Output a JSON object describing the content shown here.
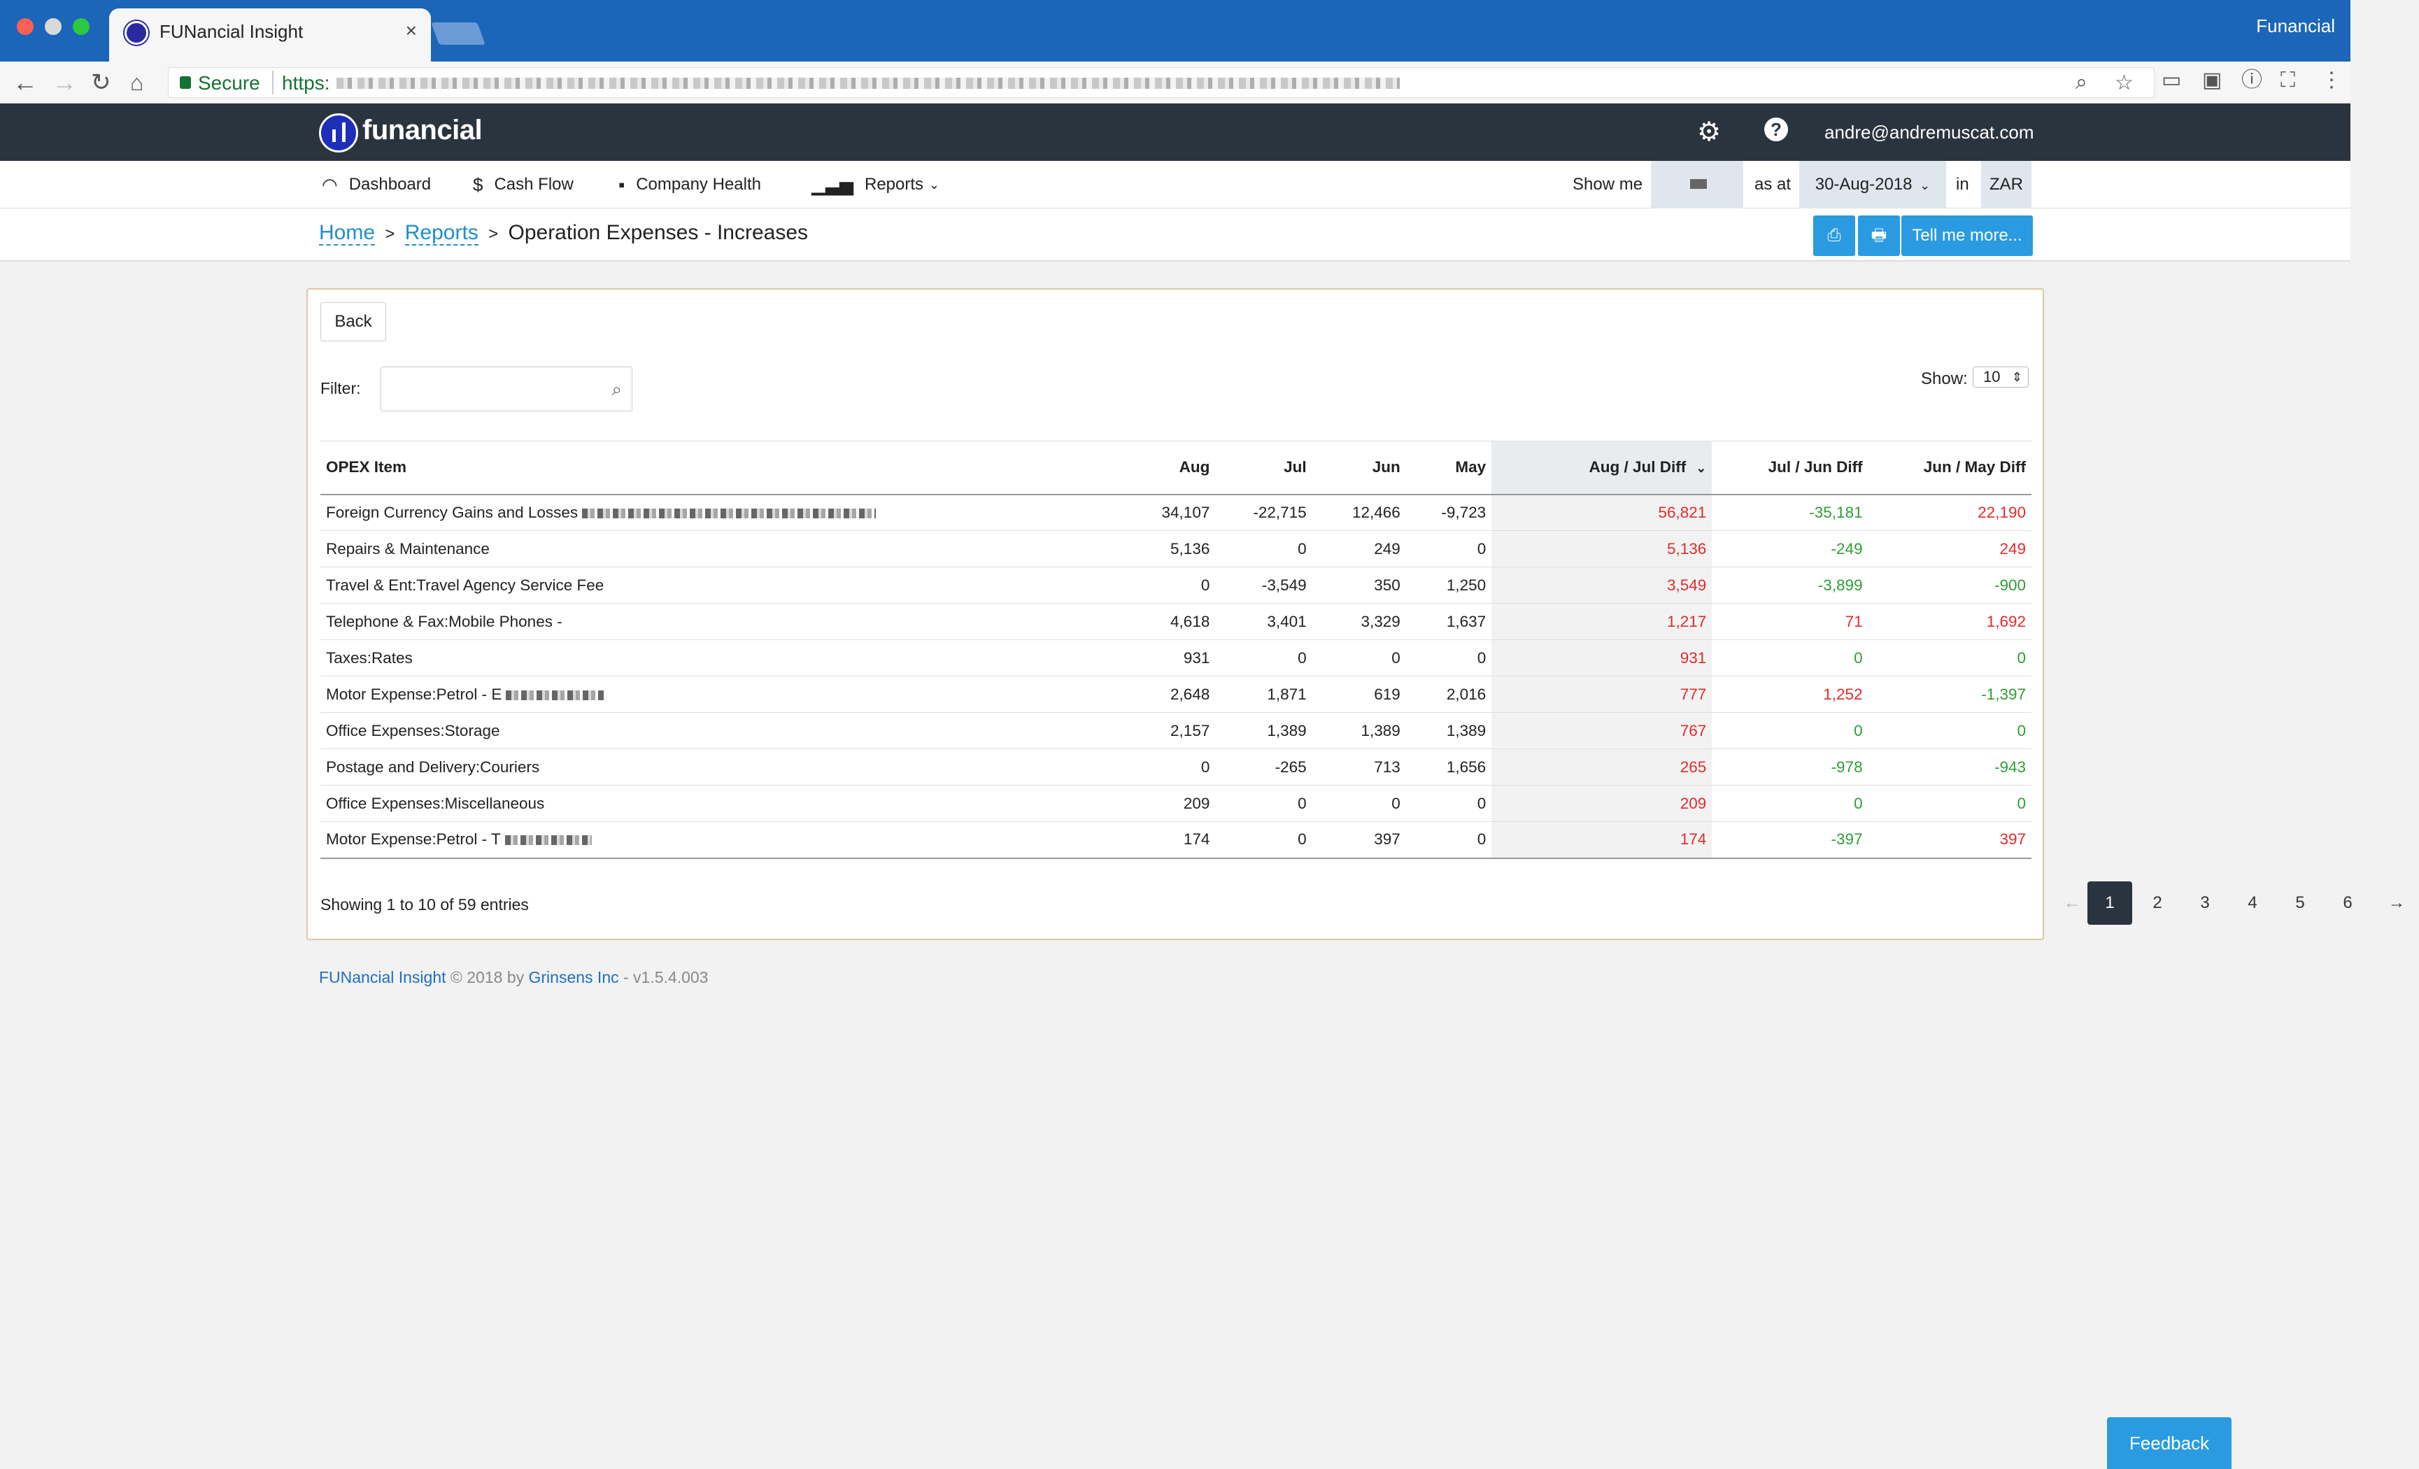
{
  "browser": {
    "tab_title": "FUNancial Insight",
    "tab_close": "×",
    "profile_name": "Funancial",
    "secure_label": "Secure",
    "url_prefix": "https:"
  },
  "header": {
    "logo_text": "funancial",
    "user_email": "andre@andremuscat.com"
  },
  "nav": {
    "items": [
      {
        "label": "Dashboard",
        "icon": "speedometer-icon"
      },
      {
        "label": "Cash Flow",
        "icon": "dollar-icon"
      },
      {
        "label": "Company Health",
        "icon": "medkit-icon"
      },
      {
        "label": "Reports",
        "icon": "bar-chart-icon"
      }
    ],
    "show_me_label": "Show me",
    "as_at_label": "as at",
    "date_value": "30-Aug-2018",
    "in_label": "in",
    "currency": "ZAR"
  },
  "breadcrumb": {
    "home": "Home",
    "reports": "Reports",
    "separator": ">",
    "current": "Operation Expenses - Increases"
  },
  "actions": {
    "tell_me_more": "Tell me more..."
  },
  "panel": {
    "back_label": "Back",
    "filter_label": "Filter:",
    "filter_value": "",
    "show_label": "Show:",
    "show_value": "10"
  },
  "table": {
    "columns": [
      "OPEX Item",
      "Aug",
      "Jul",
      "Jun",
      "May",
      "Aug / Jul Diff",
      "Jul / Jun Diff",
      "Jun / May Diff"
    ],
    "rows": [
      {
        "item": "Foreign Currency Gains and Losses",
        "aug": "34,107",
        "jul": "-22,715",
        "jun": "12,466",
        "may": "-9,723",
        "d1": "56,821",
        "d1c": "red",
        "d2": "-35,181",
        "d2c": "green",
        "d3": "22,190",
        "d3c": "red"
      },
      {
        "item": "Repairs & Maintenance",
        "aug": "5,136",
        "jul": "0",
        "jun": "249",
        "may": "0",
        "d1": "5,136",
        "d1c": "red",
        "d2": "-249",
        "d2c": "green",
        "d3": "249",
        "d3c": "red"
      },
      {
        "item": "Travel & Ent:Travel Agency Service Fee",
        "aug": "0",
        "jul": "-3,549",
        "jun": "350",
        "may": "1,250",
        "d1": "3,549",
        "d1c": "red",
        "d2": "-3,899",
        "d2c": "green",
        "d3": "-900",
        "d3c": "green"
      },
      {
        "item": "Telephone & Fax:Mobile Phones -",
        "aug": "4,618",
        "jul": "3,401",
        "jun": "3,329",
        "may": "1,637",
        "d1": "1,217",
        "d1c": "red",
        "d2": "71",
        "d2c": "red",
        "d3": "1,692",
        "d3c": "red"
      },
      {
        "item": "Taxes:Rates",
        "aug": "931",
        "jul": "0",
        "jun": "0",
        "may": "0",
        "d1": "931",
        "d1c": "red",
        "d2": "0",
        "d2c": "green",
        "d3": "0",
        "d3c": "green"
      },
      {
        "item": "Motor Expense:Petrol - E",
        "aug": "2,648",
        "jul": "1,871",
        "jun": "619",
        "may": "2,016",
        "d1": "777",
        "d1c": "red",
        "d2": "1,252",
        "d2c": "red",
        "d3": "-1,397",
        "d3c": "green"
      },
      {
        "item": "Office Expenses:Storage",
        "aug": "2,157",
        "jul": "1,389",
        "jun": "1,389",
        "may": "1,389",
        "d1": "767",
        "d1c": "red",
        "d2": "0",
        "d2c": "green",
        "d3": "0",
        "d3c": "green"
      },
      {
        "item": "Postage and Delivery:Couriers",
        "aug": "0",
        "jul": "-265",
        "jun": "713",
        "may": "1,656",
        "d1": "265",
        "d1c": "red",
        "d2": "-978",
        "d2c": "green",
        "d3": "-943",
        "d3c": "green"
      },
      {
        "item": "Office Expenses:Miscellaneous",
        "aug": "209",
        "jul": "0",
        "jun": "0",
        "may": "0",
        "d1": "209",
        "d1c": "red",
        "d2": "0",
        "d2c": "green",
        "d3": "0",
        "d3c": "green"
      },
      {
        "item": "Motor Expense:Petrol - T",
        "aug": "174",
        "jul": "0",
        "jun": "397",
        "may": "0",
        "d1": "174",
        "d1c": "red",
        "d2": "-397",
        "d2c": "green",
        "d3": "397",
        "d3c": "red"
      }
    ]
  },
  "pagination": {
    "summary": "Showing 1 to 10 of 59 entries",
    "prev": "←",
    "next": "→",
    "pages": [
      "1",
      "2",
      "3",
      "4",
      "5",
      "6"
    ],
    "active": "1"
  },
  "footer": {
    "product": "FUNancial Insight",
    "copyright": "© 2018 by",
    "company": "Grinsens Inc",
    "version": "- v1.5.4.003"
  },
  "feedback_label": "Feedback",
  "colors": {
    "titlebar": "#1b66b8",
    "appbar": "#2a343e",
    "accent": "#2a9be0",
    "negative_diff": "#2e9e36",
    "positive_diff": "#e32b2b"
  }
}
